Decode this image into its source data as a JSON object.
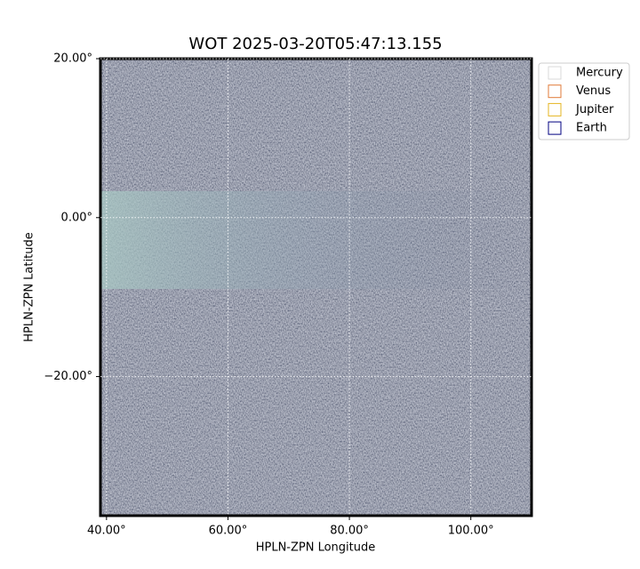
{
  "chart_data": {
    "type": "image",
    "title": "WOT 2025-03-20T05:47:13.155",
    "x_label": "HPLN-ZPN Longitude",
    "y_label": "HPLN-ZPN Latitude",
    "xlim": [
      39,
      110
    ],
    "ylim": [
      -37.5,
      20
    ],
    "xticks": [
      {
        "value": 40,
        "label": "40.00°"
      },
      {
        "value": 60,
        "label": "60.00°"
      },
      {
        "value": 80,
        "label": "80.00°"
      },
      {
        "value": 100,
        "label": "100.00°"
      }
    ],
    "yticks": [
      {
        "value": 20,
        "label": "20.00°"
      },
      {
        "value": 0,
        "label": "0.00°"
      },
      {
        "value": -20,
        "label": "−20.00°"
      }
    ],
    "grid": true,
    "legend": "upper right outside",
    "series": [
      {
        "name": "Mercury",
        "color": "#d9d9d9"
      },
      {
        "name": "Venus",
        "color": "#e07b39"
      },
      {
        "name": "Jupiter",
        "color": "#e6b422"
      },
      {
        "name": "Earth",
        "color": "#000080"
      }
    ]
  }
}
